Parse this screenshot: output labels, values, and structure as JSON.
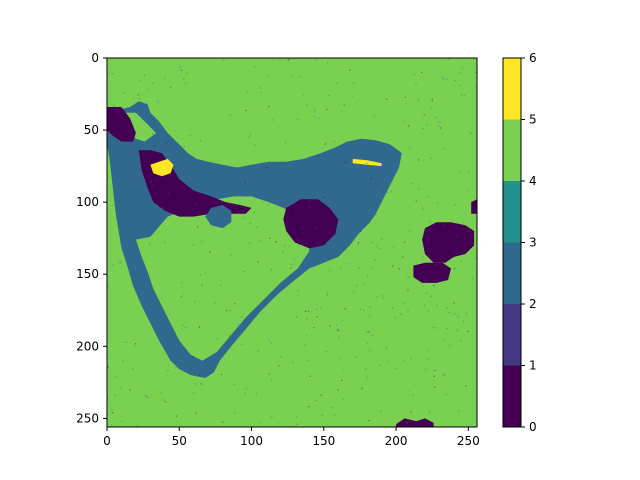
{
  "chart_data": {
    "type": "heatmap",
    "title": "",
    "xlabel": "",
    "ylabel": "",
    "image_size": [
      256,
      256
    ],
    "xlim": [
      0,
      256
    ],
    "ylim": [
      256,
      0
    ],
    "x_ticks": [
      0,
      50,
      100,
      150,
      200,
      250
    ],
    "y_ticks": [
      0,
      50,
      100,
      150,
      200,
      250
    ],
    "colorbar": {
      "range": [
        0,
        6
      ],
      "ticks": [
        0,
        1,
        2,
        3,
        4,
        5,
        6
      ],
      "bands": [
        {
          "from": 0,
          "to": 1,
          "color": "#440154"
        },
        {
          "from": 1,
          "to": 2,
          "color": "#443983"
        },
        {
          "from": 2,
          "to": 3,
          "color": "#31688e"
        },
        {
          "from": 3,
          "to": 4,
          "color": "#21918c"
        },
        {
          "from": 4,
          "to": 5,
          "color": "#7ad151"
        },
        {
          "from": 5,
          "to": 6,
          "color": "#fde725"
        }
      ]
    },
    "classes": {
      "background": {
        "value": 4,
        "color": "#7ad151"
      },
      "channel": {
        "value": 2,
        "color": "#31688e"
      },
      "dark": {
        "value": 0,
        "color": "#440154"
      },
      "bright": {
        "value": 5,
        "color": "#fde725"
      }
    },
    "regions": [
      {
        "name": "channel-loop",
        "value": 2,
        "points": [
          [
            0,
            35
          ],
          [
            8,
            36
          ],
          [
            16,
            34
          ],
          [
            22,
            30
          ],
          [
            28,
            32
          ],
          [
            30,
            38
          ],
          [
            36,
            44
          ],
          [
            42,
            52
          ],
          [
            50,
            60
          ],
          [
            56,
            66
          ],
          [
            62,
            70
          ],
          [
            70,
            72
          ],
          [
            80,
            74
          ],
          [
            90,
            76
          ],
          [
            100,
            74
          ],
          [
            112,
            72
          ],
          [
            124,
            72
          ],
          [
            136,
            70
          ],
          [
            148,
            66
          ],
          [
            158,
            62
          ],
          [
            166,
            58
          ],
          [
            176,
            56
          ],
          [
            186,
            57
          ],
          [
            196,
            60
          ],
          [
            204,
            66
          ],
          [
            202,
            76
          ],
          [
            196,
            88
          ],
          [
            190,
            100
          ],
          [
            186,
            108
          ],
          [
            182,
            114
          ],
          [
            174,
            122
          ],
          [
            168,
            130
          ],
          [
            160,
            138
          ],
          [
            150,
            142
          ],
          [
            140,
            146
          ],
          [
            130,
            154
          ],
          [
            118,
            164
          ],
          [
            106,
            176
          ],
          [
            96,
            188
          ],
          [
            86,
            200
          ],
          [
            78,
            210
          ],
          [
            74,
            218
          ],
          [
            68,
            222
          ],
          [
            58,
            220
          ],
          [
            50,
            216
          ],
          [
            44,
            210
          ],
          [
            36,
            196
          ],
          [
            30,
            184
          ],
          [
            24,
            172
          ],
          [
            18,
            158
          ],
          [
            14,
            144
          ],
          [
            10,
            132
          ],
          [
            8,
            120
          ],
          [
            6,
            108
          ],
          [
            4,
            90
          ],
          [
            2,
            72
          ],
          [
            0,
            60
          ]
        ]
      },
      {
        "name": "loop-interior",
        "value": 4,
        "points": [
          [
            20,
            126
          ],
          [
            30,
            124
          ],
          [
            42,
            110
          ],
          [
            52,
            106
          ],
          [
            62,
            100
          ],
          [
            76,
            98
          ],
          [
            88,
            96
          ],
          [
            100,
            96
          ],
          [
            112,
            100
          ],
          [
            122,
            104
          ],
          [
            132,
            110
          ],
          [
            138,
            120
          ],
          [
            140,
            134
          ],
          [
            132,
            146
          ],
          [
            120,
            156
          ],
          [
            108,
            168
          ],
          [
            96,
            180
          ],
          [
            86,
            192
          ],
          [
            76,
            204
          ],
          [
            66,
            210
          ],
          [
            58,
            206
          ],
          [
            50,
            196
          ],
          [
            44,
            184
          ],
          [
            38,
            172
          ],
          [
            32,
            160
          ],
          [
            28,
            148
          ],
          [
            24,
            138
          ]
        ]
      },
      {
        "name": "upper-gap",
        "value": 4,
        "points": [
          [
            12,
            38
          ],
          [
            20,
            38
          ],
          [
            28,
            46
          ],
          [
            34,
            52
          ],
          [
            26,
            58
          ],
          [
            20,
            56
          ],
          [
            14,
            50
          ],
          [
            10,
            44
          ]
        ]
      },
      {
        "name": "dark-left-edge",
        "value": 0,
        "points": [
          [
            0,
            34
          ],
          [
            10,
            34
          ],
          [
            16,
            42
          ],
          [
            20,
            52
          ],
          [
            18,
            58
          ],
          [
            10,
            58
          ],
          [
            4,
            54
          ],
          [
            0,
            50
          ]
        ]
      },
      {
        "name": "dark-pocket",
        "value": 0,
        "points": [
          [
            22,
            64
          ],
          [
            30,
            64
          ],
          [
            38,
            66
          ],
          [
            44,
            74
          ],
          [
            50,
            84
          ],
          [
            60,
            92
          ],
          [
            72,
            96
          ],
          [
            82,
            100
          ],
          [
            92,
            102
          ],
          [
            100,
            104
          ],
          [
            96,
            108
          ],
          [
            84,
            108
          ],
          [
            72,
            108
          ],
          [
            60,
            110
          ],
          [
            50,
            110
          ],
          [
            40,
            106
          ],
          [
            32,
            100
          ],
          [
            28,
            90
          ],
          [
            24,
            78
          ]
        ]
      },
      {
        "name": "dark-center-blob",
        "value": 0,
        "points": [
          [
            124,
            104
          ],
          [
            134,
            98
          ],
          [
            146,
            98
          ],
          [
            154,
            104
          ],
          [
            160,
            112
          ],
          [
            158,
            122
          ],
          [
            150,
            130
          ],
          [
            140,
            132
          ],
          [
            130,
            128
          ],
          [
            124,
            120
          ],
          [
            122,
            112
          ]
        ]
      },
      {
        "name": "dark-right-blob-1",
        "value": 0,
        "points": [
          [
            220,
            118
          ],
          [
            228,
            114
          ],
          [
            238,
            114
          ],
          [
            248,
            116
          ],
          [
            254,
            120
          ],
          [
            254,
            130
          ],
          [
            248,
            136
          ],
          [
            240,
            138
          ],
          [
            234,
            142
          ],
          [
            226,
            142
          ],
          [
            220,
            136
          ],
          [
            218,
            126
          ]
        ]
      },
      {
        "name": "dark-right-blob-2",
        "value": 0,
        "points": [
          [
            212,
            144
          ],
          [
            220,
            142
          ],
          [
            232,
            142
          ],
          [
            238,
            146
          ],
          [
            236,
            154
          ],
          [
            228,
            156
          ],
          [
            218,
            156
          ],
          [
            212,
            152
          ]
        ]
      },
      {
        "name": "dark-right-edge",
        "value": 0,
        "points": [
          [
            252,
            100
          ],
          [
            256,
            98
          ],
          [
            256,
            108
          ],
          [
            252,
            108
          ]
        ]
      },
      {
        "name": "dark-bottom-edge",
        "value": 0,
        "points": [
          [
            200,
            254
          ],
          [
            206,
            250
          ],
          [
            214,
            252
          ],
          [
            220,
            250
          ],
          [
            226,
            253
          ],
          [
            226,
            256
          ],
          [
            200,
            256
          ]
        ]
      },
      {
        "name": "channel-small-circle",
        "value": 2,
        "points": [
          [
            72,
            104
          ],
          [
            80,
            102
          ],
          [
            86,
            106
          ],
          [
            86,
            114
          ],
          [
            80,
            118
          ],
          [
            72,
            116
          ],
          [
            68,
            110
          ]
        ]
      },
      {
        "name": "bright-spot",
        "value": 5,
        "points": [
          [
            30,
            74
          ],
          [
            36,
            72
          ],
          [
            42,
            70
          ],
          [
            46,
            74
          ],
          [
            44,
            80
          ],
          [
            38,
            82
          ],
          [
            32,
            80
          ]
        ]
      },
      {
        "name": "bright-line",
        "value": 5,
        "points": [
          [
            170,
            70
          ],
          [
            180,
            71
          ],
          [
            190,
            73
          ],
          [
            190,
            75
          ],
          [
            180,
            74
          ],
          [
            170,
            73
          ]
        ]
      }
    ]
  }
}
